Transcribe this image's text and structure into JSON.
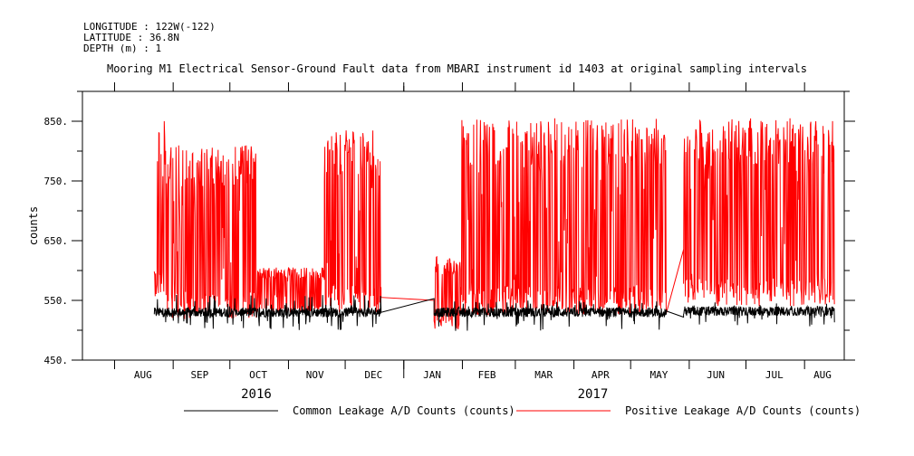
{
  "header": {
    "longitude": "LONGITUDE : 122W(-122)",
    "latitude": "LATITUDE : 36.8N",
    "depth": "DEPTH (m) : 1"
  },
  "chart_data": {
    "type": "line",
    "title": "Mooring M1 Electrical Sensor-Ground Fault data from MBARI instrument id 1403 at original sampling intervals",
    "xlabel": "",
    "ylabel": "counts",
    "ylim": [
      450,
      900
    ],
    "yticks": [
      450,
      550,
      650,
      750,
      850
    ],
    "ytick_labels": [
      "450.",
      "550.",
      "650.",
      "750.",
      "850."
    ],
    "x_months": [
      "AUG",
      "SEP",
      "OCT",
      "NOV",
      "DEC",
      "JAN",
      "FEB",
      "MAR",
      "APR",
      "MAY",
      "JUN",
      "JUL",
      "AUG"
    ],
    "x_years": [
      "2016",
      "2017"
    ],
    "xlim": [
      "2016-07-15",
      "2017-08-22"
    ],
    "grid": false,
    "legend_position": "bottom",
    "colors": {
      "common": "#000000",
      "positive": "#ff0000"
    },
    "series": [
      {
        "name": "Common Leakage A/D Counts (counts)",
        "color": "#000000",
        "segments": [
          {
            "x": [
              "2016-08-22",
              "2016-12-20"
            ],
            "range": [
              500,
              560
            ],
            "mean": 530
          },
          {
            "x": [
              "2016-12-20",
              "2017-01-17"
            ],
            "values": [
              530,
              553
            ]
          },
          {
            "x": [
              "2017-01-17",
              "2017-05-20"
            ],
            "range": [
              498,
              550
            ],
            "mean": 530
          },
          {
            "x": [
              "2017-05-20",
              "2017-05-29"
            ],
            "values": [
              532,
              522
            ]
          },
          {
            "x": [
              "2017-05-29",
              "2017-08-17"
            ],
            "range": [
              505,
              548
            ],
            "mean": 532
          }
        ]
      },
      {
        "name": "Positive Leakage A/D Counts (counts)",
        "color": "#ff0000",
        "segments": [
          {
            "x": [
              "2016-08-22",
              "2016-08-28"
            ],
            "range": [
              555,
              855
            ]
          },
          {
            "x": [
              "2016-08-28",
              "2016-10-15"
            ],
            "range": [
              520,
              810
            ]
          },
          {
            "x": [
              "2016-10-15",
              "2016-11-20"
            ],
            "range": [
              530,
              605
            ]
          },
          {
            "x": [
              "2016-11-20",
              "2016-12-20"
            ],
            "range": [
              530,
              835
            ]
          },
          {
            "x": [
              "2016-12-20",
              "2017-01-17"
            ],
            "values": [
              555,
              550
            ]
          },
          {
            "x": [
              "2017-01-17",
              "2017-01-31"
            ],
            "range": [
              500,
              625
            ]
          },
          {
            "x": [
              "2017-01-31",
              "2017-05-20"
            ],
            "range": [
              525,
              855
            ]
          },
          {
            "x": [
              "2017-05-20",
              "2017-05-29"
            ],
            "values": [
              530,
              635
            ]
          },
          {
            "x": [
              "2017-05-29",
              "2017-08-17"
            ],
            "range": [
              540,
              855
            ]
          }
        ]
      }
    ]
  }
}
